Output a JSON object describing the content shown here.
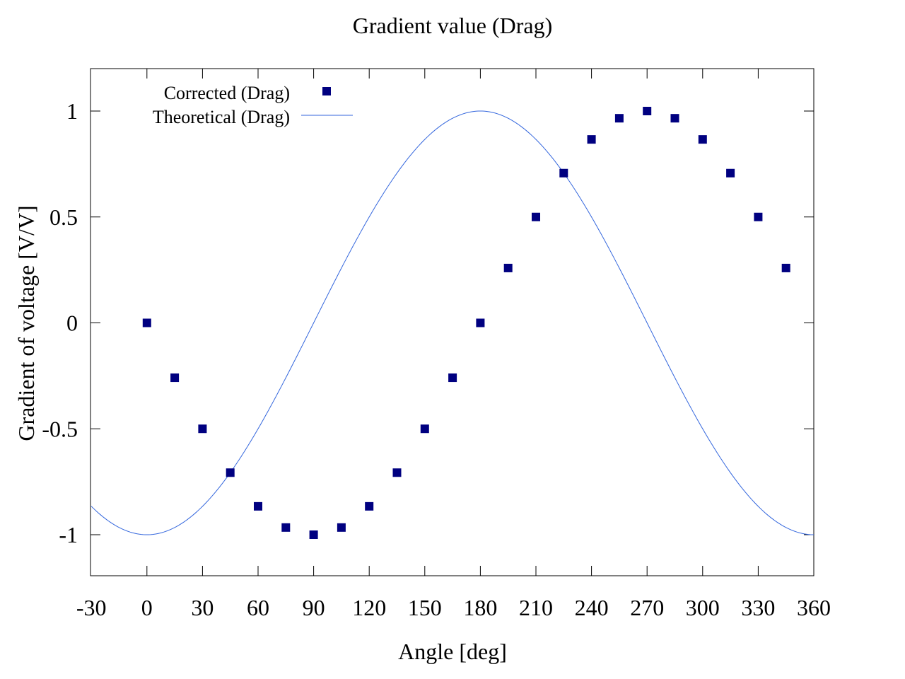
{
  "chart_data": {
    "type": "scatter",
    "title": "Gradient value (Drag)",
    "xlabel": "Angle [deg]",
    "ylabel": "Gradient of voltage [V/V]",
    "xlim": [
      -30,
      360
    ],
    "ylim": [
      -1.2,
      1.2
    ],
    "x_ticks": [
      -30,
      0,
      30,
      60,
      90,
      120,
      150,
      180,
      210,
      240,
      270,
      300,
      330,
      360
    ],
    "y_ticks": [
      1,
      0.5,
      0,
      -0.5,
      -1
    ],
    "x_tick_labels": [
      "-30",
      "0",
      "30",
      "60",
      "90",
      "120",
      "150",
      "180",
      "210",
      "240",
      "270",
      "300",
      "330",
      "360"
    ],
    "y_tick_labels": [
      "1",
      "0.5",
      "0",
      "-0.5",
      "-1"
    ],
    "grid": false,
    "legend_position": "top-left",
    "series": [
      {
        "name": "Corrected (Drag)",
        "kind": "points",
        "marker": "square",
        "color": "#000080",
        "x": [
          0,
          15,
          30,
          45,
          60,
          75,
          90,
          105,
          120,
          135,
          150,
          165,
          180,
          195,
          210,
          225,
          240,
          255,
          270,
          285,
          300,
          315,
          330,
          345
        ],
        "y": [
          0,
          -0.259,
          -0.5,
          -0.707,
          -0.866,
          -0.966,
          -1,
          -0.966,
          -0.866,
          -0.707,
          -0.5,
          -0.259,
          0,
          0.259,
          0.5,
          0.707,
          0.866,
          0.966,
          1,
          0.966,
          0.866,
          0.707,
          0.5,
          0.259
        ]
      },
      {
        "name": "Theoretical (Drag)",
        "kind": "line",
        "color": "#3366dd",
        "function": "-cos(x deg)",
        "x_range": [
          -30,
          360
        ]
      }
    ]
  }
}
